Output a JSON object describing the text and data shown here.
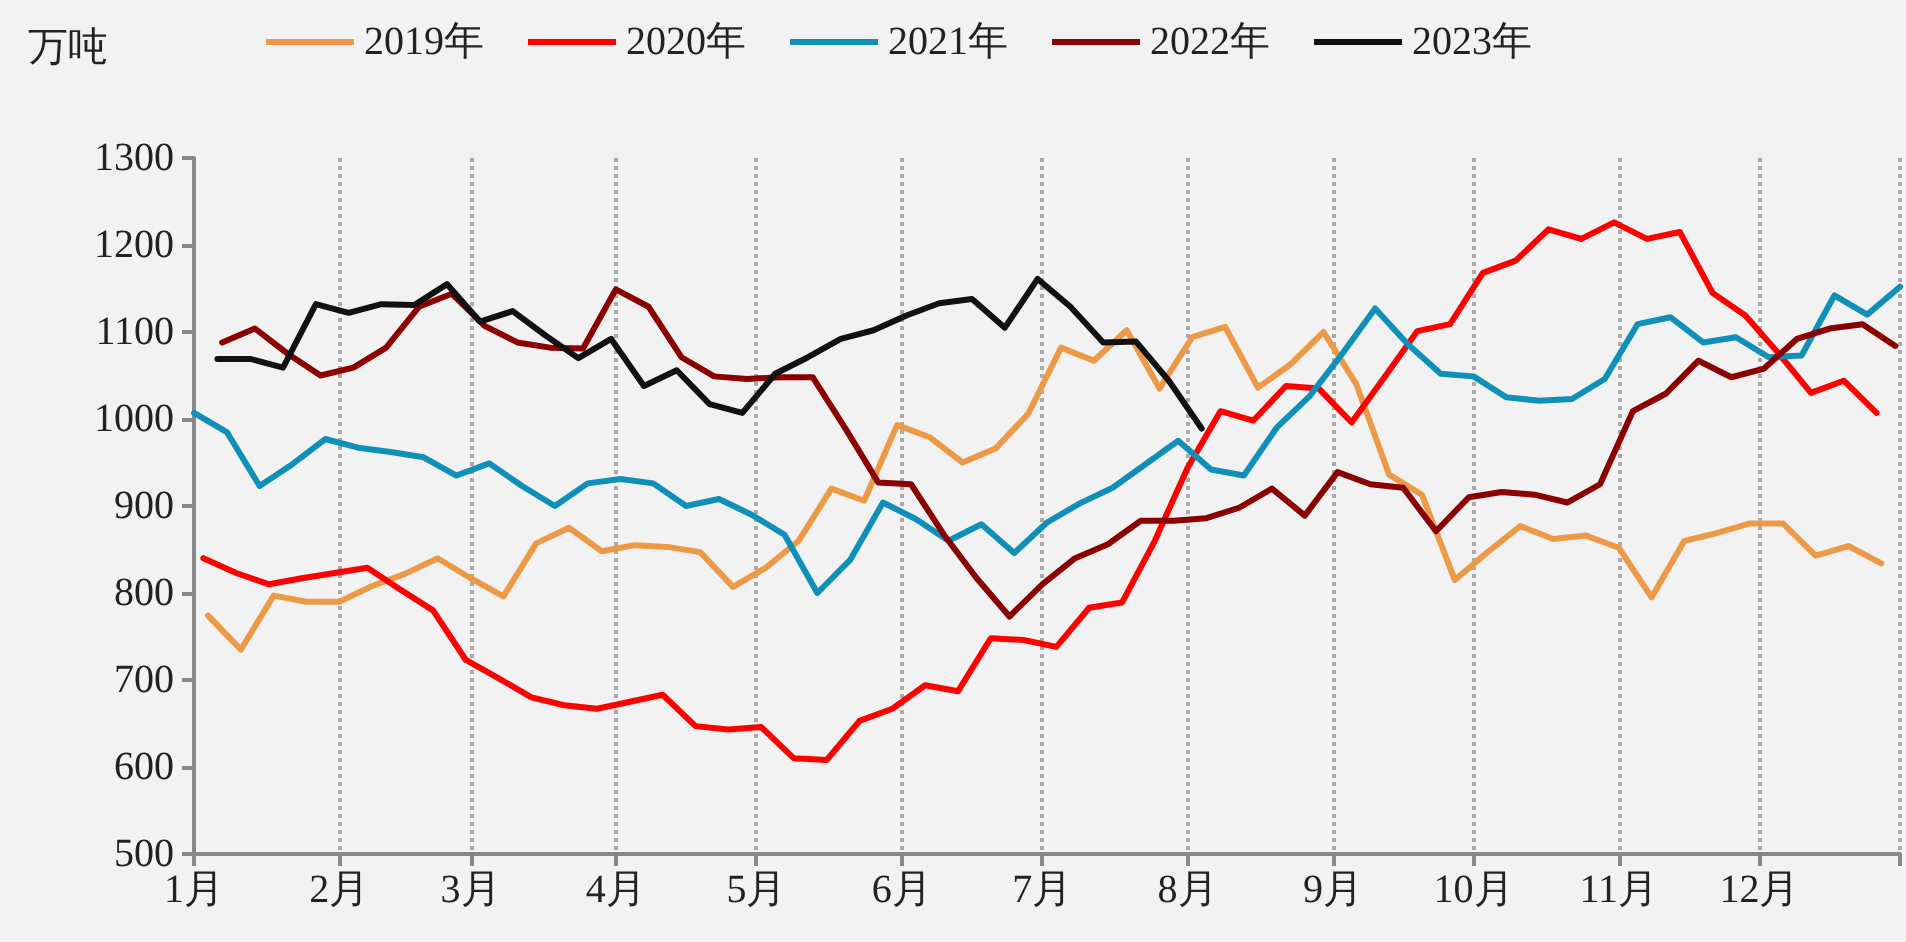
{
  "chart_data": {
    "type": "line",
    "ylabel": "万吨",
    "xlim": [
      "--01-01",
      "--12-31"
    ],
    "xticks": [
      {
        "value": "--01-01",
        "label": "1月"
      },
      {
        "value": "--02-01",
        "label": "2月"
      },
      {
        "value": "--03-01",
        "label": "3月"
      },
      {
        "value": "--04-01",
        "label": "4月"
      },
      {
        "value": "--05-01",
        "label": "5月"
      },
      {
        "value": "--06-01",
        "label": "6月"
      },
      {
        "value": "--07-01",
        "label": "7月"
      },
      {
        "value": "--08-01",
        "label": "8月"
      },
      {
        "value": "--09-01",
        "label": "9月"
      },
      {
        "value": "--10-01",
        "label": "10月"
      },
      {
        "value": "--11-01",
        "label": "11月"
      },
      {
        "value": "--12-01",
        "label": "12月"
      },
      {
        "value": "--12-31",
        "label": null
      }
    ],
    "ylim": [
      500,
      1300
    ],
    "yticks": [
      500,
      600,
      700,
      800,
      900,
      1000,
      1100,
      1200,
      1300
    ],
    "grid": "x",
    "legend": "top",
    "marker": "none",
    "line_style": "solid",
    "series": [
      {
        "name": "2019年",
        "color": "#ed9a48",
        "x": [
          "--01-04",
          "--01-11",
          "--01-18",
          "--01-25",
          "--02-01",
          "--02-08",
          "--02-15",
          "--02-22",
          "--03-01",
          "--03-08",
          "--03-15",
          "--03-22",
          "--03-29",
          "--04-05",
          "--04-12",
          "--04-19",
          "--04-26",
          "--05-03",
          "--05-10",
          "--05-17",
          "--05-24",
          "--05-31",
          "--06-07",
          "--06-14",
          "--06-21",
          "--06-28",
          "--07-05",
          "--07-12",
          "--07-19",
          "--07-26",
          "--08-02",
          "--08-09",
          "--08-16",
          "--08-23",
          "--08-30",
          "--09-06",
          "--09-13",
          "--09-20",
          "--09-27",
          "--10-04",
          "--10-11",
          "--10-18",
          "--10-25",
          "--11-01",
          "--11-08",
          "--11-15",
          "--11-22",
          "--11-29",
          "--12-06",
          "--12-13",
          "--12-20",
          "--12-27"
        ],
        "values": [
          774,
          735,
          797,
          790,
          790,
          808,
          822,
          840,
          817,
          796,
          857,
          875,
          848,
          855,
          853,
          847,
          807,
          829,
          860,
          920,
          906,
          993,
          979,
          950,
          966,
          1006,
          1082,
          1067,
          1102,
          1035,
          1094,
          1106,
          1036,
          1063,
          1100,
          1040,
          936,
          913,
          815,
          847,
          877,
          862,
          866,
          852,
          795,
          860,
          869,
          880,
          880,
          843,
          854,
          834
        ]
      },
      {
        "name": "2020年",
        "color": "#ff0000",
        "x": [
          "--01-03",
          "--01-10",
          "--01-17",
          "--01-24",
          "--01-31",
          "--02-07",
          "--02-14",
          "--02-21",
          "--02-28",
          "--03-07",
          "--03-14",
          "--03-21",
          "--03-28",
          "--04-04",
          "--04-11",
          "--04-18",
          "--04-25",
          "--05-02",
          "--05-09",
          "--05-16",
          "--05-23",
          "--05-30",
          "--06-06",
          "--06-13",
          "--06-20",
          "--06-27",
          "--07-04",
          "--07-11",
          "--07-18",
          "--07-25",
          "--08-01",
          "--08-08",
          "--08-15",
          "--08-22",
          "--08-29",
          "--09-05",
          "--09-12",
          "--09-19",
          "--09-26",
          "--10-03",
          "--10-10",
          "--10-17",
          "--10-24",
          "--10-31",
          "--11-07",
          "--11-14",
          "--11-21",
          "--11-28",
          "--12-05",
          "--12-12",
          "--12-19",
          "--12-26"
        ],
        "values": [
          840,
          823,
          810,
          817,
          823,
          829,
          804,
          780,
          723,
          702,
          680,
          671,
          667,
          675,
          683,
          647,
          643,
          646,
          610,
          608,
          653,
          667,
          694,
          687,
          748,
          746,
          738,
          783,
          789,
          860,
          944,
          1009,
          998,
          1038,
          1035,
          996,
          1048,
          1101,
          1109,
          1168,
          1182,
          1218,
          1207,
          1226,
          1207,
          1215,
          1145,
          1119,
          1076,
          1030,
          1044,
          1007
        ]
      },
      {
        "name": "2021年",
        "color": "#1090b8",
        "x": [
          "--01-01",
          "--01-08",
          "--01-15",
          "--01-22",
          "--01-29",
          "--02-05",
          "--02-12",
          "--02-19",
          "--02-26",
          "--03-05",
          "--03-12",
          "--03-19",
          "--03-26",
          "--04-02",
          "--04-09",
          "--04-16",
          "--04-23",
          "--04-30",
          "--05-07",
          "--05-14",
          "--05-21",
          "--05-28",
          "--06-04",
          "--06-11",
          "--06-18",
          "--06-25",
          "--07-02",
          "--07-09",
          "--07-16",
          "--07-23",
          "--07-30",
          "--08-06",
          "--08-13",
          "--08-20",
          "--08-27",
          "--09-03",
          "--09-10",
          "--09-17",
          "--09-24",
          "--10-01",
          "--10-08",
          "--10-15",
          "--10-22",
          "--10-29",
          "--11-05",
          "--11-12",
          "--11-19",
          "--11-26",
          "--12-03",
          "--12-10",
          "--12-17",
          "--12-24",
          "--12-31"
        ],
        "values": [
          1007,
          985,
          923,
          948,
          977,
          967,
          962,
          956,
          935,
          949,
          923,
          900,
          926,
          931,
          926,
          900,
          908,
          890,
          867,
          800,
          838,
          904,
          885,
          860,
          879,
          846,
          881,
          903,
          921,
          948,
          975,
          942,
          935,
          990,
          1026,
          1075,
          1127,
          1086,
          1052,
          1049,
          1025,
          1021,
          1023,
          1046,
          1109,
          1117,
          1088,
          1094,
          1071,
          1073,
          1142,
          1120,
          1152
        ]
      },
      {
        "name": "2022年",
        "color": "#8b0000",
        "x": [
          "--01-07",
          "--01-14",
          "--01-21",
          "--01-28",
          "--02-04",
          "--02-11",
          "--02-18",
          "--02-25",
          "--03-04",
          "--03-11",
          "--03-18",
          "--03-25",
          "--04-01",
          "--04-08",
          "--04-15",
          "--04-22",
          "--04-29",
          "--05-06",
          "--05-13",
          "--05-20",
          "--05-27",
          "--06-03",
          "--06-10",
          "--06-17",
          "--06-24",
          "--07-01",
          "--07-08",
          "--07-15",
          "--07-22",
          "--07-29",
          "--08-05",
          "--08-12",
          "--08-19",
          "--08-26",
          "--09-02",
          "--09-09",
          "--09-16",
          "--09-23",
          "--09-30",
          "--10-07",
          "--10-14",
          "--10-21",
          "--10-28",
          "--11-04",
          "--11-11",
          "--11-18",
          "--11-25",
          "--12-02",
          "--12-09",
          "--12-16",
          "--12-23",
          "--12-30"
        ],
        "values": [
          1088,
          1104,
          1075,
          1050,
          1059,
          1082,
          1129,
          1144,
          1107,
          1088,
          1082,
          1081,
          1149,
          1129,
          1071,
          1049,
          1046,
          1048,
          1048,
          989,
          927,
          925,
          867,
          817,
          773,
          810,
          840,
          856,
          883,
          883,
          886,
          898,
          920,
          889,
          939,
          925,
          921,
          871,
          910,
          916,
          913,
          904,
          925,
          1009,
          1029,
          1067,
          1048,
          1058,
          1092,
          1104,
          1109,
          1084
        ]
      },
      {
        "name": "2023年",
        "color": "#111111",
        "x": [
          "--01-06",
          "--01-13",
          "--01-20",
          "--01-27",
          "--02-03",
          "--02-10",
          "--02-17",
          "--02-24",
          "--03-03",
          "--03-10",
          "--03-17",
          "--03-24",
          "--03-31",
          "--04-07",
          "--04-14",
          "--04-21",
          "--04-28",
          "--05-05",
          "--05-12",
          "--05-19",
          "--05-26",
          "--06-02",
          "--06-09",
          "--06-16",
          "--06-23",
          "--06-30",
          "--07-07",
          "--07-14",
          "--07-21",
          "--07-28",
          "--08-04"
        ],
        "values": [
          1069,
          1069,
          1059,
          1132,
          1122,
          1132,
          1131,
          1155,
          1112,
          1124,
          1096,
          1070,
          1092,
          1038,
          1056,
          1017,
          1007,
          1052,
          1071,
          1092,
          1102,
          1119,
          1133,
          1138,
          1105,
          1161,
          1129,
          1088,
          1089,
          1044,
          989
        ]
      }
    ]
  }
}
